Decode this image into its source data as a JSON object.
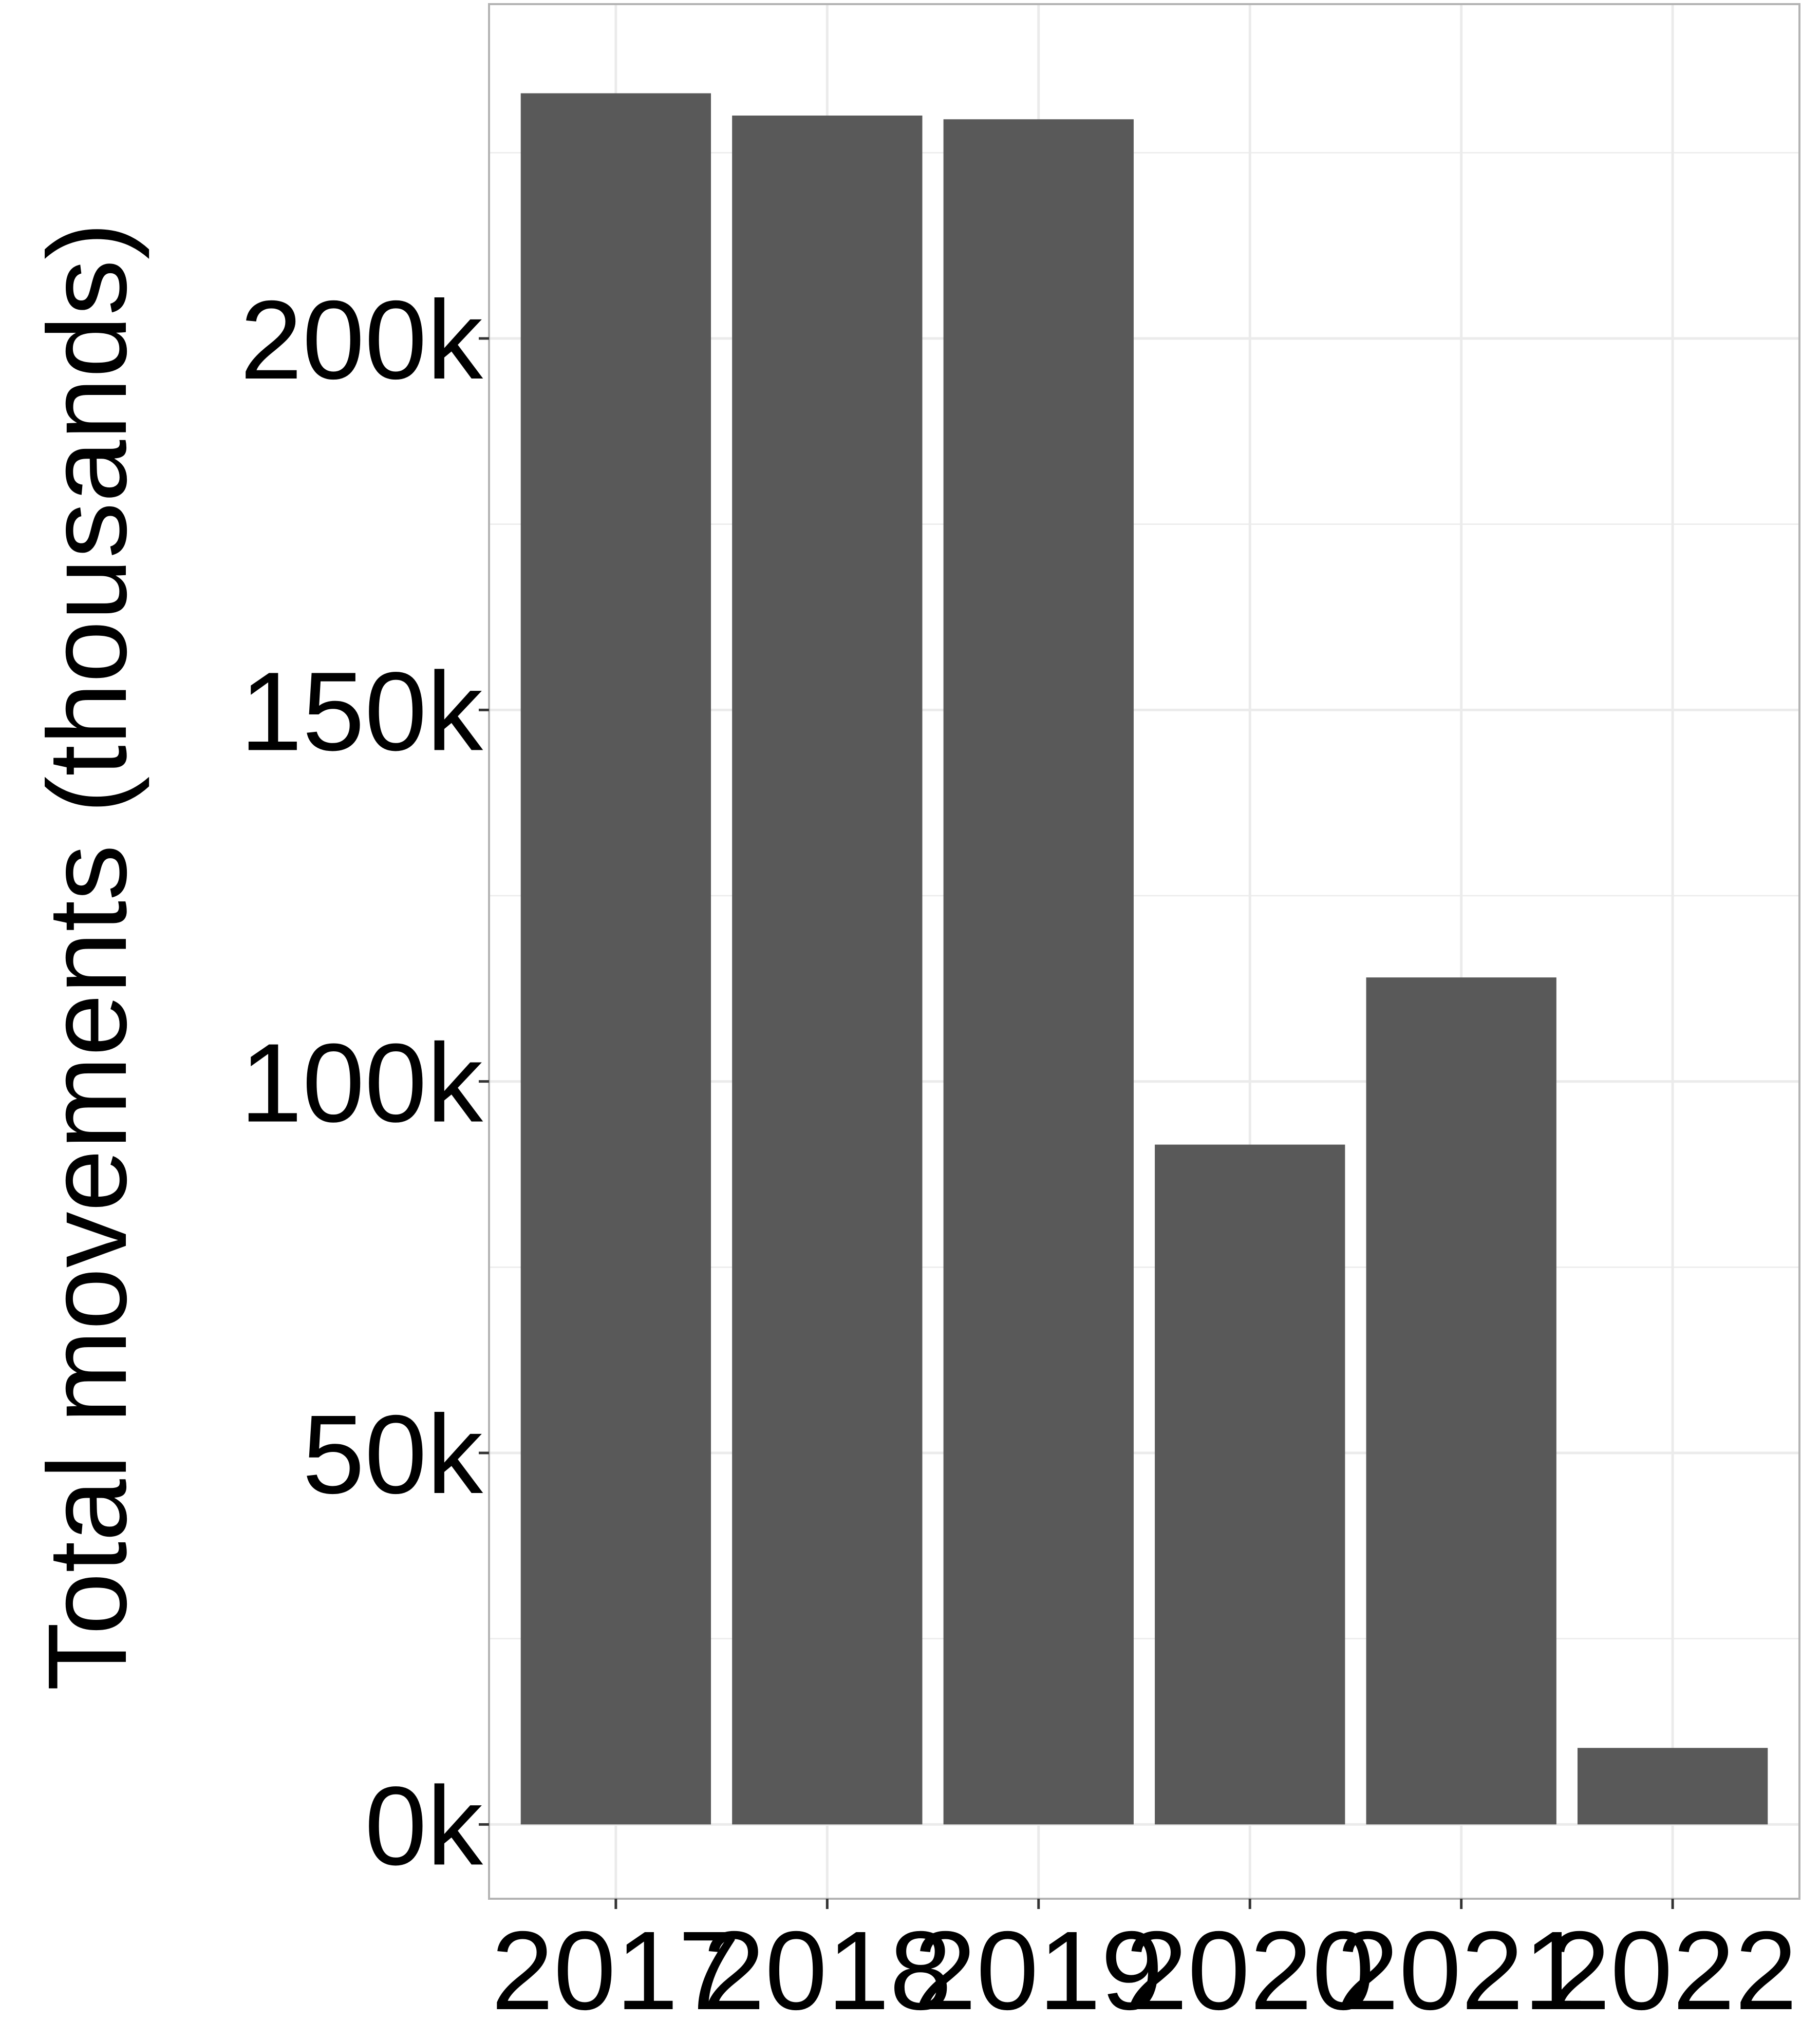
{
  "chart_data": {
    "type": "bar",
    "title": "",
    "xlabel": "",
    "ylabel": "Total movements (thousands)",
    "categories": [
      "2017",
      "2018",
      "2019",
      "2020",
      "2021",
      "2022"
    ],
    "values": [
      233000,
      230000,
      229500,
      91500,
      114000,
      10300
    ],
    "ylim": [
      -10000,
      245000
    ],
    "yticks": [
      0,
      50000,
      100000,
      150000,
      200000
    ],
    "ytick_labels": [
      "0k",
      "50k",
      "100k",
      "150k",
      "200k"
    ],
    "grid": true,
    "legend": "none",
    "colors": {
      "bar": "#595959",
      "grid": "#ebebeb",
      "panel_border": "#b3b3b3",
      "tick": "#333333",
      "background": "#ffffff"
    }
  }
}
